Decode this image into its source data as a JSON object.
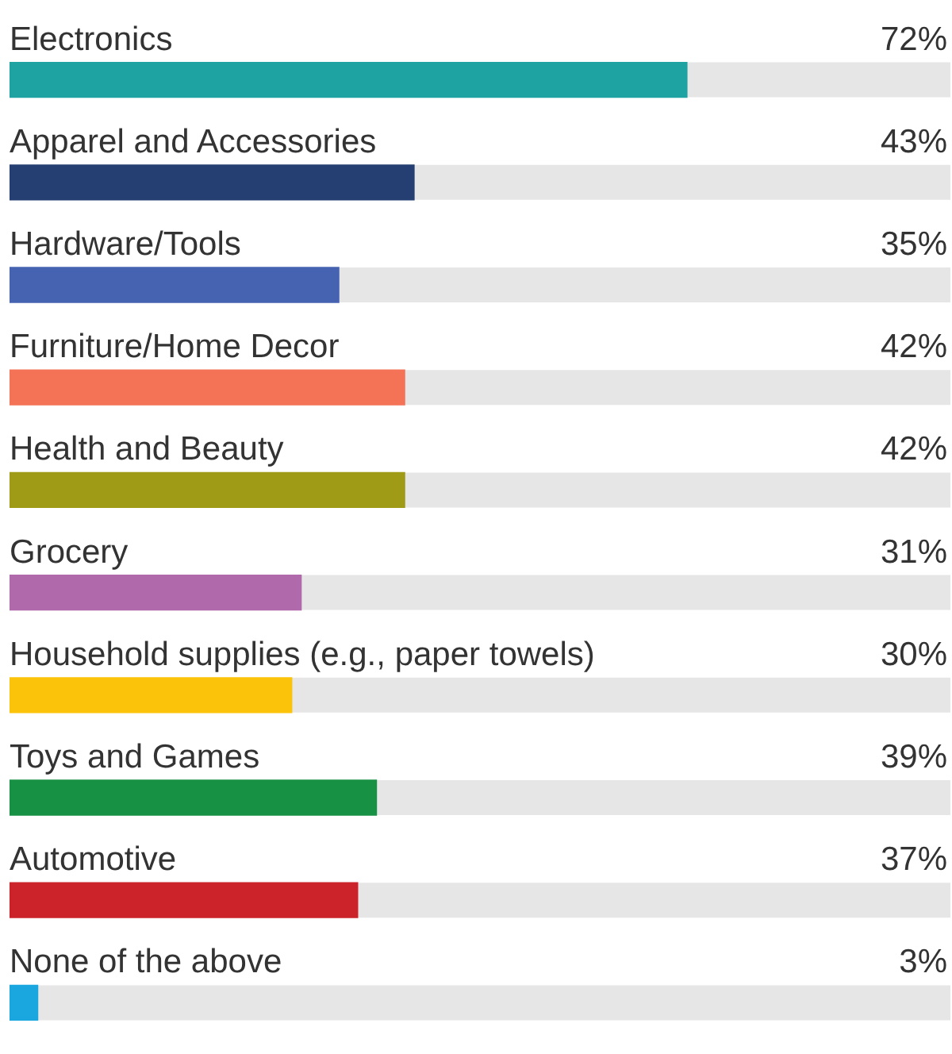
{
  "chart_data": {
    "type": "bar",
    "orientation": "horizontal",
    "categories": [
      "Electronics",
      "Apparel and Accessories",
      "Hardware/Tools",
      "Furniture/Home Decor",
      "Health and Beauty",
      "Grocery",
      "Household supplies (e.g., paper towels)",
      "Toys and Games",
      "Automotive",
      "None of the above"
    ],
    "values": [
      72,
      43,
      35,
      42,
      42,
      31,
      30,
      39,
      37,
      3
    ],
    "value_labels": [
      "72%",
      "43%",
      "35%",
      "42%",
      "42%",
      "31%",
      "30%",
      "39%",
      "37%",
      "3%"
    ],
    "colors": [
      "#1fa2a2",
      "#253f72",
      "#4563b0",
      "#f47356",
      "#9f9b16",
      "#b06aab",
      "#fcc30b",
      "#179244",
      "#cc2229",
      "#1aa7e0"
    ],
    "xlim": [
      0,
      100
    ],
    "tick_labels": false,
    "legend": false
  }
}
